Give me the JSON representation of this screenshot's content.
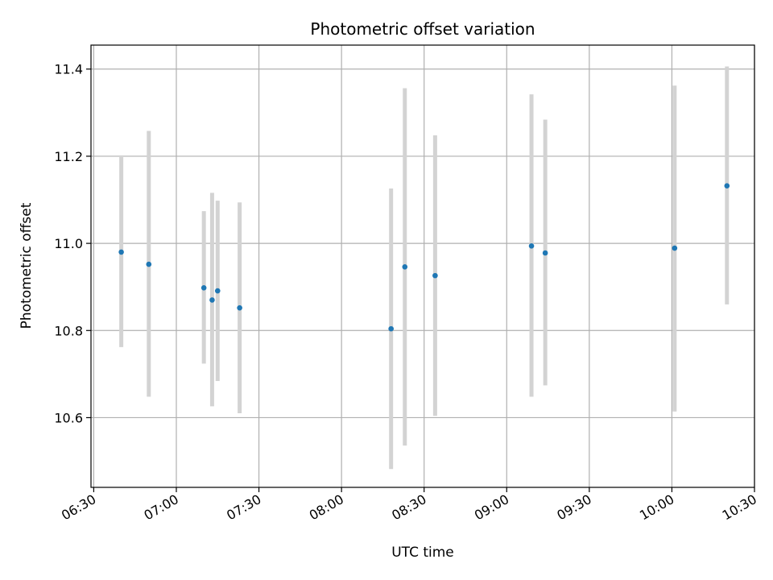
{
  "chart_data": {
    "type": "scatter",
    "title": "Photometric offset variation",
    "xlabel": "UTC time",
    "ylabel": "Photometric offset",
    "x_axis_kind": "time",
    "xlim": [
      "06:29",
      "10:30"
    ],
    "ylim": [
      10.44,
      11.455
    ],
    "grid": true,
    "point_color": "#1f77b4",
    "errorbar_color": "#d3d3d3",
    "x_ticks": [
      "06:30",
      "07:00",
      "07:30",
      "08:00",
      "08:30",
      "09:00",
      "09:30",
      "10:00",
      "10:30"
    ],
    "y_ticks": [
      "10.6",
      "10.8",
      "11.0",
      "11.2",
      "11.4"
    ],
    "points": [
      {
        "time": "06:40",
        "y": 10.98,
        "ymin": 10.762,
        "ymax": 11.198
      },
      {
        "time": "06:50",
        "y": 10.952,
        "ymin": 10.648,
        "ymax": 11.258
      },
      {
        "time": "07:10",
        "y": 10.898,
        "ymin": 10.724,
        "ymax": 11.074
      },
      {
        "time": "07:13",
        "y": 10.87,
        "ymin": 10.626,
        "ymax": 11.116
      },
      {
        "time": "07:15",
        "y": 10.891,
        "ymin": 10.684,
        "ymax": 11.098
      },
      {
        "time": "07:23",
        "y": 10.852,
        "ymin": 10.61,
        "ymax": 11.094
      },
      {
        "time": "08:18",
        "y": 10.804,
        "ymin": 10.482,
        "ymax": 11.126
      },
      {
        "time": "08:23",
        "y": 10.946,
        "ymin": 10.536,
        "ymax": 11.356
      },
      {
        "time": "08:34",
        "y": 10.926,
        "ymin": 10.604,
        "ymax": 11.248
      },
      {
        "time": "09:09",
        "y": 10.994,
        "ymin": 10.648,
        "ymax": 11.342
      },
      {
        "time": "09:14",
        "y": 10.978,
        "ymin": 10.674,
        "ymax": 11.284
      },
      {
        "time": "10:01",
        "y": 10.989,
        "ymin": 10.614,
        "ymax": 11.362
      },
      {
        "time": "10:20",
        "y": 11.132,
        "ymin": 10.86,
        "ymax": 11.406
      }
    ]
  }
}
